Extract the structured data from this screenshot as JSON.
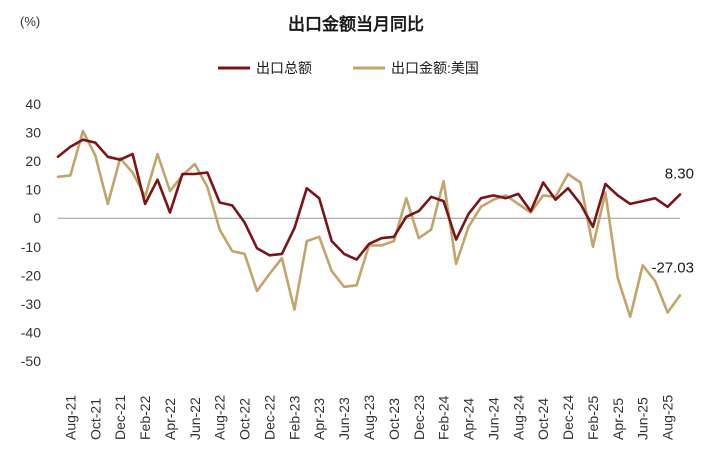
{
  "chart_data": {
    "type": "line",
    "title": "出口金额当月同比",
    "ylabel": "(%)",
    "xlabel": "",
    "ylim": [
      -50,
      40
    ],
    "yticks": [
      40,
      30,
      20,
      10,
      0,
      -10,
      -20,
      -30,
      -40,
      -50
    ],
    "grid": false,
    "legend_position": "top-center",
    "x": [
      "2021-07",
      "2021-08",
      "2021-09",
      "2021-10",
      "2021-11",
      "2021-12",
      "2022-01",
      "2022-02",
      "2022-03",
      "2022-04",
      "2022-05",
      "2022-06",
      "2022-07",
      "2022-08",
      "2022-09",
      "2022-10",
      "2022-11",
      "2022-12",
      "2023-01",
      "2023-02",
      "2023-03",
      "2023-04",
      "2023-05",
      "2023-06",
      "2023-07",
      "2023-08",
      "2023-09",
      "2023-10",
      "2023-11",
      "2023-12",
      "2024-01",
      "2024-02",
      "2024-03",
      "2024-04",
      "2024-05",
      "2024-06",
      "2024-07",
      "2024-08",
      "2024-09",
      "2024-10",
      "2024-11",
      "2024-12",
      "2025-01",
      "2025-02",
      "2025-03",
      "2025-04",
      "2025-05",
      "2025-06",
      "2025-07",
      "2025-08",
      "2025-09"
    ],
    "xtick_labels": [
      "Aug-21",
      "Oct-21",
      "Dec-21",
      "Feb-22",
      "Apr-22",
      "Jun-22",
      "Aug-22",
      "Oct-22",
      "Dec-22",
      "Feb-23",
      "Apr-23",
      "Jun-23",
      "Aug-23",
      "Oct-23",
      "Dec-23",
      "Feb-24",
      "Apr-24",
      "Jun-24",
      "Aug-24",
      "Oct-24",
      "Dec-24",
      "Feb-25",
      "Apr-25",
      "Jun-25",
      "Aug-25"
    ],
    "xtick_index": [
      1,
      3,
      5,
      7,
      9,
      11,
      13,
      15,
      17,
      19,
      21,
      23,
      25,
      27,
      29,
      31,
      33,
      35,
      37,
      39,
      41,
      43,
      45,
      47,
      49
    ],
    "series": [
      {
        "name": "出口总额",
        "color": "#7b1416",
        "values": [
          21.5,
          25.0,
          27.5,
          26.5,
          21.5,
          20.5,
          22.5,
          5.0,
          13.5,
          2.0,
          15.5,
          15.5,
          16.0,
          5.5,
          4.5,
          -1.5,
          -10.5,
          -13.0,
          -12.5,
          -3.5,
          10.5,
          7.0,
          -8.0,
          -12.5,
          -14.5,
          -9.0,
          -7.0,
          -6.5,
          0.5,
          2.5,
          7.5,
          6.0,
          -7.5,
          1.5,
          7.0,
          8.0,
          7.0,
          8.5,
          2.5,
          12.5,
          6.5,
          10.5,
          5.0,
          -3.0,
          12.0,
          8.0,
          5.0,
          6.0,
          7.0,
          4.0,
          8.3
        ]
      },
      {
        "name": "出口金额:美国",
        "color": "#c3a46a",
        "values": [
          14.5,
          15.0,
          30.5,
          22.0,
          5.0,
          21.0,
          16.0,
          7.5,
          22.5,
          9.5,
          15.0,
          19.0,
          11.0,
          -4.0,
          -11.5,
          -12.5,
          -25.5,
          -19.5,
          -14.0,
          -32.0,
          -8.0,
          -6.5,
          -18.5,
          -24.0,
          -23.5,
          -9.5,
          -9.5,
          -8.0,
          7.0,
          -7.0,
          -4.0,
          13.0,
          -16.0,
          -3.0,
          4.0,
          6.5,
          8.0,
          5.0,
          2.0,
          8.0,
          7.5,
          15.5,
          12.5,
          -10.0,
          9.0,
          -21.0,
          -34.5,
          -16.5,
          -22.0,
          -33.0,
          -27.03
        ]
      }
    ],
    "annotations": [
      {
        "text": "8.30",
        "series": 0,
        "index": 50
      },
      {
        "text": "-27.03",
        "series": 1,
        "index": 50
      }
    ]
  }
}
